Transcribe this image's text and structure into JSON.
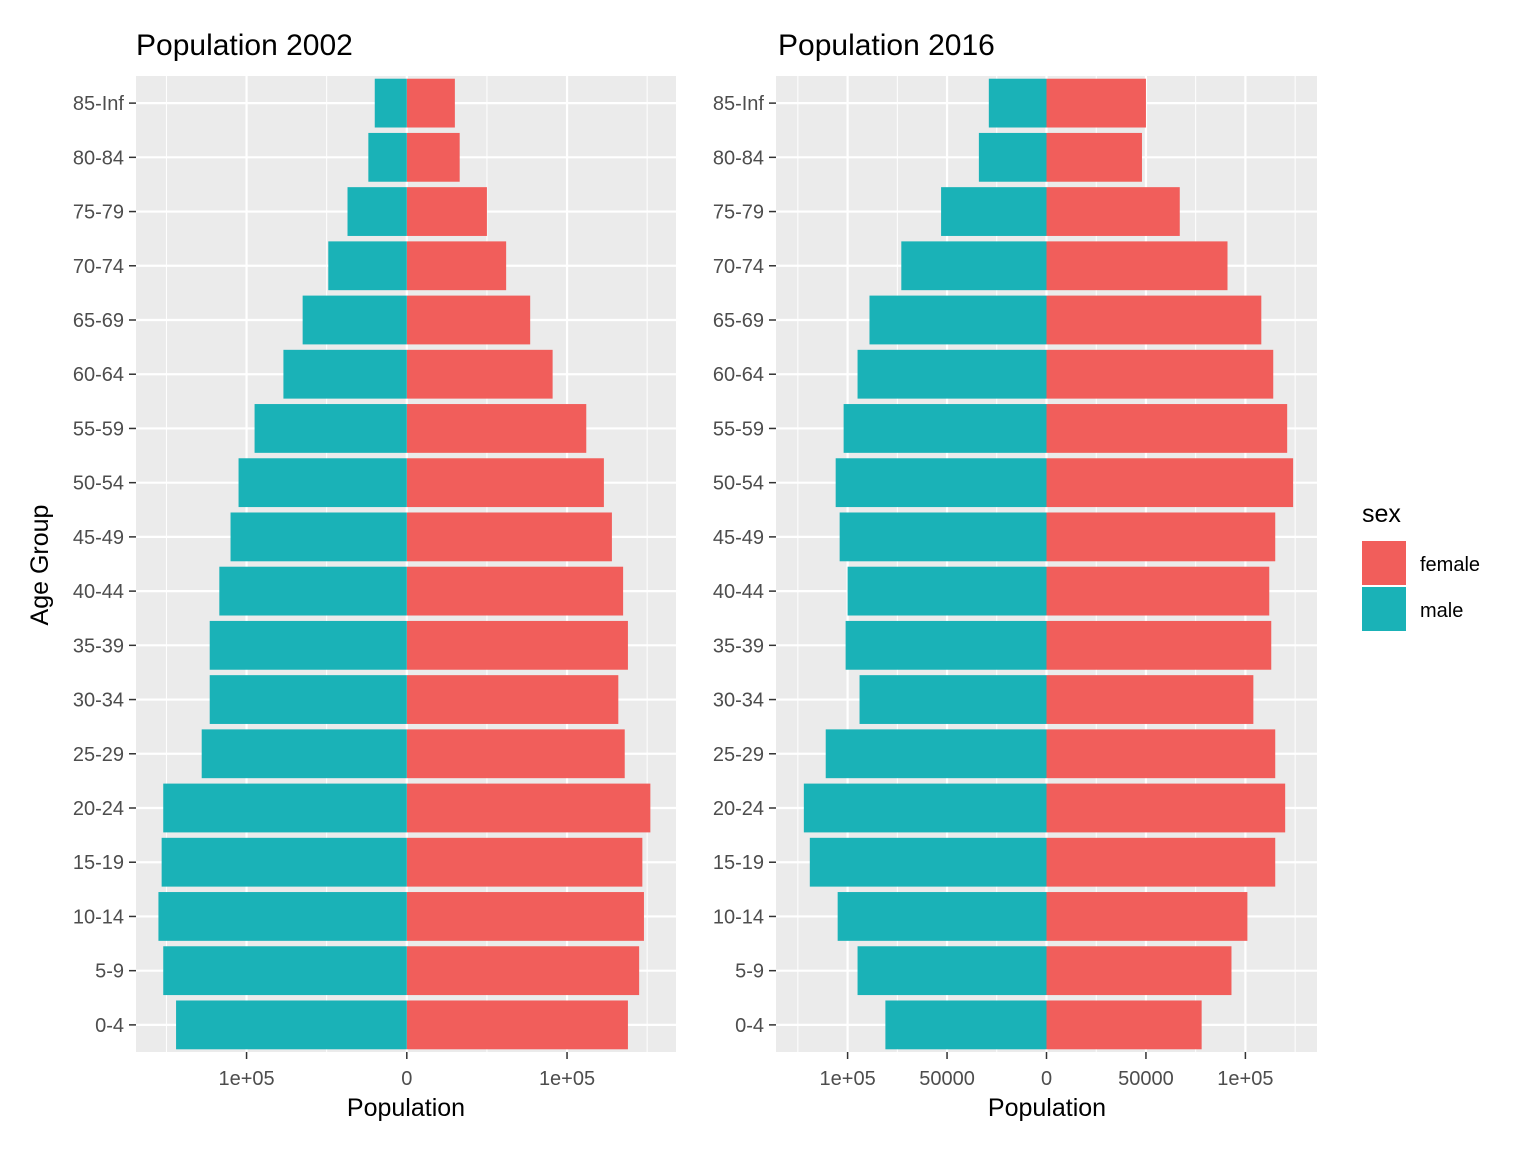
{
  "chart_data": [
    {
      "type": "bar",
      "orientation": "horizontal",
      "title": "Population 2002",
      "xlabel": "Population",
      "ylabel": "Age Group",
      "categories": [
        "0-4",
        "5-9",
        "10-14",
        "15-19",
        "20-24",
        "25-29",
        "30-34",
        "35-39",
        "40-44",
        "45-49",
        "50-54",
        "55-59",
        "60-64",
        "65-69",
        "70-74",
        "75-79",
        "80-84",
        "85-Inf"
      ],
      "series": [
        {
          "name": "female",
          "values": [
            138000,
            145000,
            148000,
            147000,
            152000,
            136000,
            132000,
            138000,
            135000,
            128000,
            123000,
            112000,
            91000,
            77000,
            62000,
            50000,
            33000,
            30000
          ]
        },
        {
          "name": "male",
          "values": [
            -144000,
            -152000,
            -155000,
            -153000,
            -152000,
            -128000,
            -123000,
            -123000,
            -117000,
            -110000,
            -105000,
            -95000,
            -77000,
            -65000,
            -49000,
            -37000,
            -24000,
            -20000
          ]
        }
      ],
      "xlim": [
        -169000,
        168000
      ],
      "xticks": [
        -100000,
        0,
        100000
      ],
      "xtick_labels": [
        "1e+05",
        "0",
        "1e+05"
      ],
      "grid": true
    },
    {
      "type": "bar",
      "orientation": "horizontal",
      "title": "Population 2016",
      "xlabel": "Population",
      "ylabel": "",
      "categories": [
        "0-4",
        "5-9",
        "10-14",
        "15-19",
        "20-24",
        "25-29",
        "30-34",
        "35-39",
        "40-44",
        "45-49",
        "50-54",
        "55-59",
        "60-64",
        "65-69",
        "70-74",
        "75-79",
        "80-84",
        "85-Inf"
      ],
      "series": [
        {
          "name": "female",
          "values": [
            78000,
            93000,
            101000,
            115000,
            120000,
            115000,
            104000,
            113000,
            112000,
            115000,
            124000,
            121000,
            114000,
            108000,
            91000,
            67000,
            48000,
            50000
          ]
        },
        {
          "name": "male",
          "values": [
            -81000,
            -95000,
            -105000,
            -119000,
            -122000,
            -111000,
            -94000,
            -101000,
            -100000,
            -104000,
            -106000,
            -102000,
            -95000,
            -89000,
            -73000,
            -53000,
            -34000,
            -29000
          ]
        }
      ],
      "xlim": [
        -136000,
        136000
      ],
      "xticks": [
        -100000,
        -50000,
        0,
        50000,
        100000
      ],
      "xtick_labels": [
        "1e+05",
        "50000",
        "0",
        "50000",
        "1e+05"
      ],
      "grid": true
    }
  ],
  "legend": {
    "title": "sex",
    "placement": "right",
    "items": [
      {
        "label": "female",
        "color": "#F8766D"
      },
      {
        "label": "male",
        "color": "#00BFC4"
      }
    ]
  },
  "colors": {
    "female": "#F15E5B",
    "male": "#1AB2B7",
    "panel": "#EBEBEB",
    "grid": "#FFFFFF"
  }
}
